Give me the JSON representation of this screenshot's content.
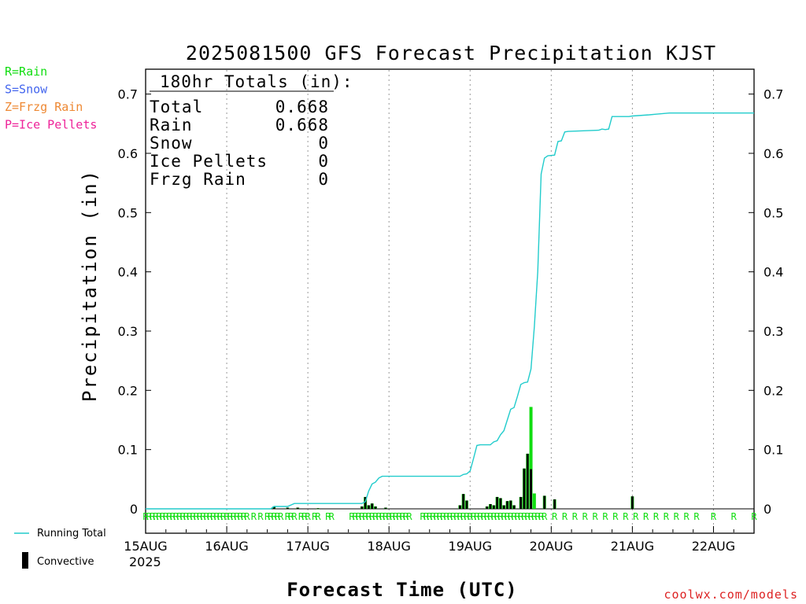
{
  "chart_data": {
    "type": "bar",
    "title": "2025081500 GFS Forecast Precipitation KJST",
    "xlabel": "Forecast Time (UTC)",
    "ylabel": "Precipitation (in)",
    "ylim": [
      0,
      0.73
    ],
    "xlim_hours": [
      0,
      180
    ],
    "y_ticks": [
      "0",
      "0.1",
      "0.2",
      "0.3",
      "0.4",
      "0.5",
      "0.6",
      "0.7"
    ],
    "x_ticks": [
      {
        "hour": 0,
        "label": "15AUG"
      },
      {
        "hour": 24,
        "label": "16AUG"
      },
      {
        "hour": 48,
        "label": "17AUG"
      },
      {
        "hour": 72,
        "label": "18AUG"
      },
      {
        "hour": 96,
        "label": "19AUG"
      },
      {
        "hour": 120,
        "label": "20AUG"
      },
      {
        "hour": 144,
        "label": "21AUG"
      },
      {
        "hour": 168,
        "label": "22AUG"
      }
    ],
    "x_year": "2025",
    "grid": "vertical-dotted",
    "totals_box": {
      "header": "180hr Totals (in):",
      "rows": [
        {
          "label": "Total",
          "value": "0.668"
        },
        {
          "label": "Rain",
          "value": "0.668"
        },
        {
          "label": "Snow",
          "value": "0"
        },
        {
          "label": "Ice Pellets",
          "value": "0"
        },
        {
          "label": "Frzg Rain",
          "value": "0"
        }
      ]
    },
    "precip_type_legend": [
      {
        "text": "R=Rain",
        "color": "#11dd11"
      },
      {
        "text": "S=Snow",
        "color": "#4466ee"
      },
      {
        "text": "Z=Frzg Rain",
        "color": "#ee8833"
      },
      {
        "text": "P=Ice Pellets",
        "color": "#ee2299"
      }
    ],
    "series_legend": [
      {
        "name": "Running Total",
        "color": "#22cccc",
        "kind": "line"
      },
      {
        "name": "Convective",
        "color": "#000000",
        "kind": "bar"
      }
    ],
    "running_total": [
      [
        0,
        0
      ],
      [
        37,
        0
      ],
      [
        38,
        0.004
      ],
      [
        42,
        0.004
      ],
      [
        44,
        0.009
      ],
      [
        64,
        0.009
      ],
      [
        65,
        0.012
      ],
      [
        66,
        0.03
      ],
      [
        67,
        0.042
      ],
      [
        68,
        0.045
      ],
      [
        69,
        0.052
      ],
      [
        70,
        0.055
      ],
      [
        93,
        0.055
      ],
      [
        94,
        0.058
      ],
      [
        95,
        0.059
      ],
      [
        96,
        0.064
      ],
      [
        97,
        0.085
      ],
      [
        98,
        0.107
      ],
      [
        99,
        0.108
      ],
      [
        102,
        0.108
      ],
      [
        103,
        0.113
      ],
      [
        104,
        0.115
      ],
      [
        105,
        0.125
      ],
      [
        106,
        0.132
      ],
      [
        107,
        0.15
      ],
      [
        108,
        0.168
      ],
      [
        109,
        0.171
      ],
      [
        110,
        0.19
      ],
      [
        111,
        0.21
      ],
      [
        112,
        0.213
      ],
      [
        113,
        0.214
      ],
      [
        114,
        0.236
      ],
      [
        115,
        0.308
      ],
      [
        116,
        0.4
      ],
      [
        117,
        0.565
      ],
      [
        118,
        0.592
      ],
      [
        119,
        0.596
      ],
      [
        121,
        0.597
      ],
      [
        122,
        0.62
      ],
      [
        123,
        0.621
      ],
      [
        124,
        0.636
      ],
      [
        125,
        0.637
      ],
      [
        134,
        0.639
      ],
      [
        135,
        0.641
      ],
      [
        136,
        0.64
      ],
      [
        137,
        0.641
      ],
      [
        138,
        0.662
      ],
      [
        143,
        0.662
      ],
      [
        144,
        0.663
      ],
      [
        149,
        0.665
      ],
      [
        151,
        0.666
      ],
      [
        155,
        0.668
      ],
      [
        180,
        0.668
      ]
    ],
    "bars": [
      {
        "hour": 38,
        "total": 0.004,
        "convective": 0.004
      },
      {
        "hour": 42,
        "total": 0.002,
        "convective": 0.002
      },
      {
        "hour": 45,
        "total": 0.002,
        "convective": 0.002
      },
      {
        "hour": 51,
        "total": 0.001,
        "convective": 0.001
      },
      {
        "hour": 64,
        "total": 0.004,
        "convective": 0.004
      },
      {
        "hour": 65,
        "total": 0.02,
        "convective": 0.02
      },
      {
        "hour": 66,
        "total": 0.006,
        "convective": 0.006
      },
      {
        "hour": 67,
        "total": 0.009,
        "convective": 0.009
      },
      {
        "hour": 68,
        "total": 0.004,
        "convective": 0.004
      },
      {
        "hour": 71,
        "total": 0.002,
        "convective": 0.002
      },
      {
        "hour": 93,
        "total": 0.006,
        "convective": 0.006
      },
      {
        "hour": 94,
        "total": 0.025,
        "convective": 0.025
      },
      {
        "hour": 95,
        "total": 0.014,
        "convective": 0.014
      },
      {
        "hour": 101,
        "total": 0.004,
        "convective": 0.004
      },
      {
        "hour": 102,
        "total": 0.008,
        "convective": 0.008
      },
      {
        "hour": 103,
        "total": 0.006,
        "convective": 0.006
      },
      {
        "hour": 104,
        "total": 0.02,
        "convective": 0.02
      },
      {
        "hour": 105,
        "total": 0.018,
        "convective": 0.018
      },
      {
        "hour": 106,
        "total": 0.006,
        "convective": 0.006
      },
      {
        "hour": 107,
        "total": 0.013,
        "convective": 0.013
      },
      {
        "hour": 108,
        "total": 0.014,
        "convective": 0.014
      },
      {
        "hour": 109,
        "total": 0.006,
        "convective": 0.006
      },
      {
        "hour": 111,
        "total": 0.02,
        "convective": 0.02
      },
      {
        "hour": 112,
        "total": 0.068,
        "convective": 0.068
      },
      {
        "hour": 113,
        "total": 0.093,
        "convective": 0.093
      },
      {
        "hour": 114,
        "total": 0.172,
        "convective": 0.067
      },
      {
        "hour": 115,
        "total": 0.026,
        "convective": 0.0
      },
      {
        "hour": 118,
        "total": 0.022,
        "convective": 0.022
      },
      {
        "hour": 121,
        "total": 0.016,
        "convective": 0.016
      },
      {
        "hour": 144,
        "total": 0.021,
        "convective": 0.021
      }
    ],
    "ptype_markers": {
      "symbol": "R",
      "hours": [
        0,
        1,
        2,
        3,
        4,
        5,
        6,
        7,
        8,
        9,
        10,
        11,
        12,
        13,
        14,
        15,
        16,
        17,
        18,
        19,
        20,
        21,
        22,
        23,
        24,
        25,
        26,
        27,
        28,
        29,
        30,
        32,
        34,
        36,
        37,
        38,
        39,
        40,
        42,
        43,
        44,
        46,
        47,
        48,
        50,
        51,
        54,
        55,
        61,
        62,
        63,
        64,
        65,
        66,
        67,
        68,
        69,
        70,
        71,
        72,
        73,
        74,
        75,
        76,
        77,
        78,
        82,
        83,
        84,
        85,
        86,
        87,
        88,
        89,
        90,
        91,
        92,
        93,
        94,
        95,
        96,
        97,
        98,
        99,
        100,
        101,
        102,
        103,
        104,
        105,
        106,
        107,
        108,
        109,
        110,
        111,
        112,
        113,
        114,
        115,
        116,
        117,
        118,
        121,
        124,
        127,
        130,
        133,
        136,
        139,
        142,
        145,
        148,
        151,
        154,
        157,
        160,
        163,
        168,
        174,
        180
      ]
    }
  },
  "credit": "coolwx.com/models"
}
